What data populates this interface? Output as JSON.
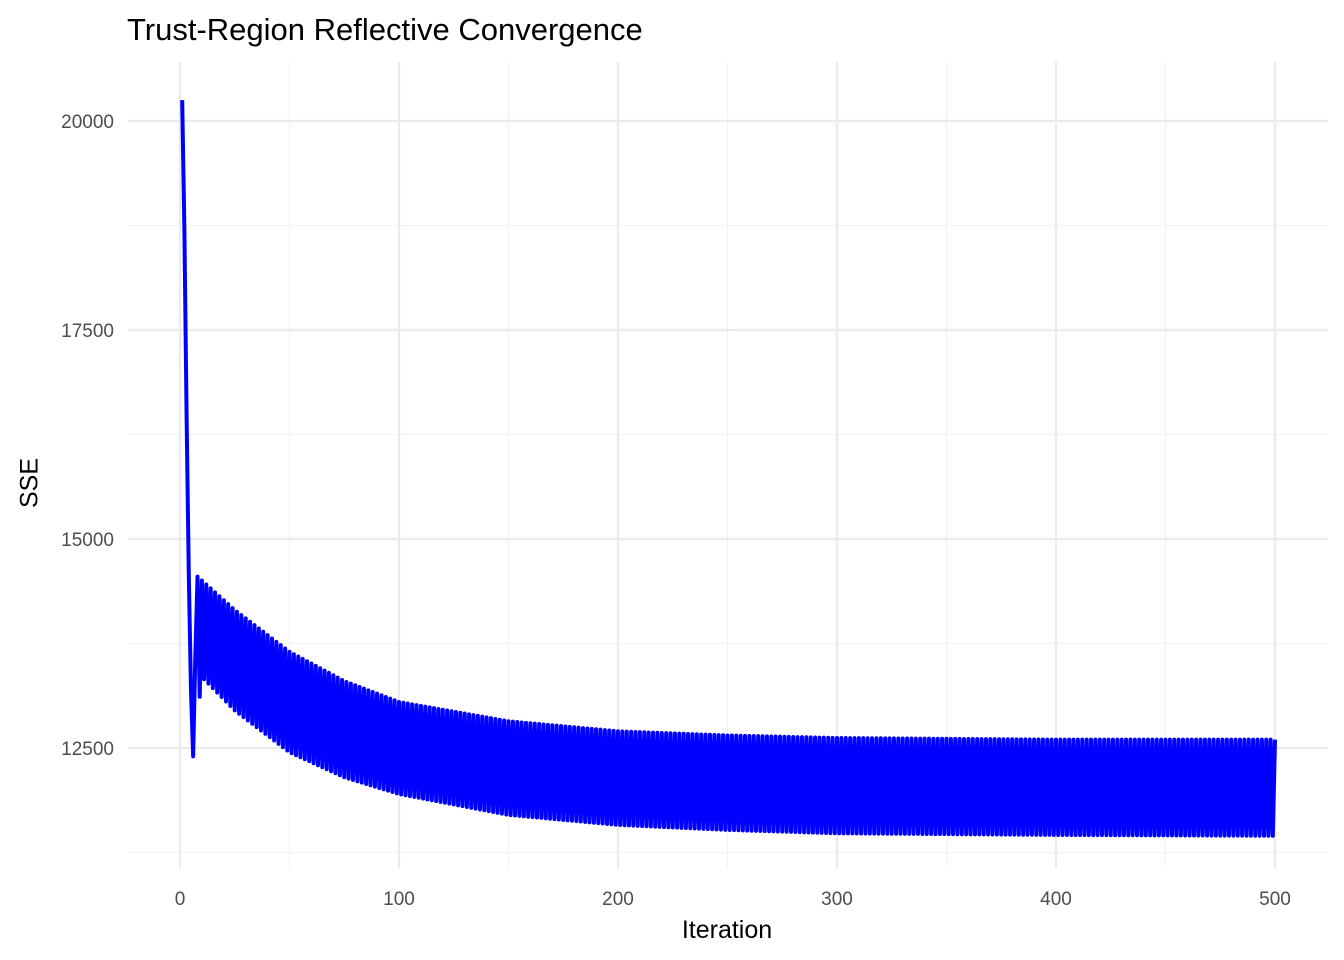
{
  "chart_data": {
    "type": "line",
    "title": "Trust-Region Reflective Convergence",
    "xlabel": "Iteration",
    "ylabel": "SSE",
    "xlim": [
      -22,
      525
    ],
    "ylim": [
      11000,
      20450
    ],
    "x_ticks": [
      0,
      100,
      200,
      300,
      400,
      500
    ],
    "y_ticks": [
      12500,
      15000,
      17500,
      20000
    ],
    "grid": true,
    "legend": "none",
    "series": [
      {
        "name": "SSE",
        "color": "#0000FF",
        "description": "Starts at ~20250, drops sharply to ~12400 by iteration 6, jumps to ~14500, then oscillates every iteration between an upper envelope and a lower envelope that both decay and flatten.",
        "upper_envelope": {
          "x": [
            1,
            8,
            25,
            50,
            75,
            100,
            150,
            200,
            250,
            300,
            400,
            500
          ],
          "y": [
            20250,
            14550,
            14150,
            13650,
            13300,
            13050,
            12820,
            12700,
            12650,
            12620,
            12600,
            12600
          ]
        },
        "lower_envelope": {
          "x": [
            6,
            10,
            25,
            50,
            75,
            100,
            150,
            200,
            250,
            300,
            400,
            500
          ],
          "y": [
            12400,
            13350,
            12950,
            12450,
            12150,
            11950,
            11700,
            11580,
            11520,
            11480,
            11460,
            11450
          ]
        }
      }
    ]
  }
}
